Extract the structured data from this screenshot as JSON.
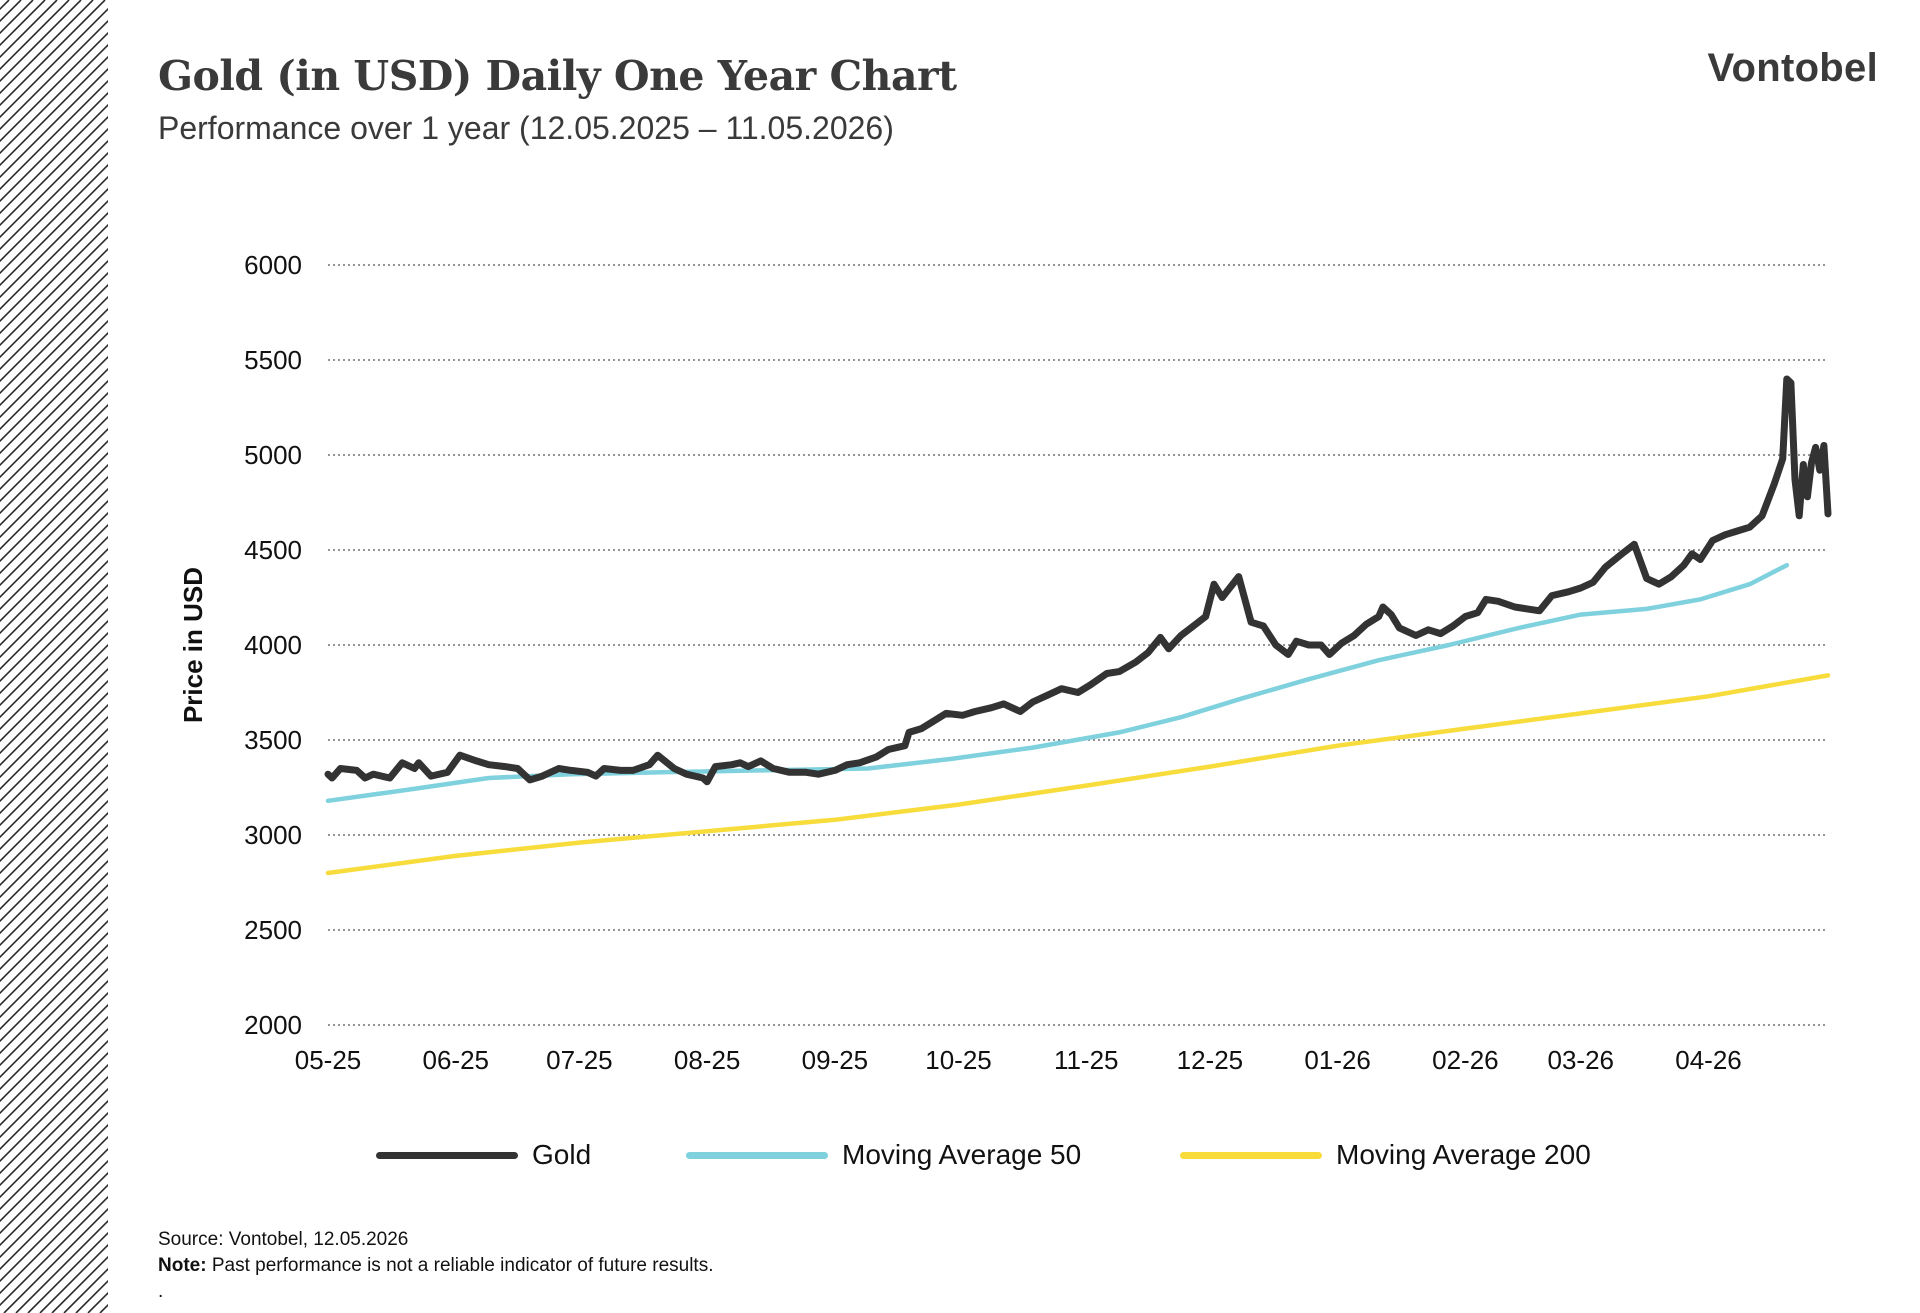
{
  "header": {
    "title": "Gold (in USD) Daily One Year Chart",
    "subtitle": "Performance over 1 year (12.05.2025 – 11.05.2026)",
    "logo": "Vontobel"
  },
  "footer": {
    "source": "Source: Vontobel, 12.05.2026",
    "note_label": "Note:",
    "note_text": " Past performance is not a reliable indicator of future results.",
    "trailing": "."
  },
  "colors": {
    "gold": "#333333",
    "ma50": "#7fd1de",
    "ma200": "#f7dc3c",
    "grid": "#555555",
    "hatch": "#2a2a2a"
  },
  "chart_data": {
    "type": "line",
    "ylabel": "Price in USD",
    "xlabel": "",
    "ylim": [
      2000,
      6000
    ],
    "yticks": [
      2000,
      2500,
      3000,
      3500,
      4000,
      4500,
      5000,
      5500,
      6000
    ],
    "xlim": [
      "2025-05-12",
      "2026-05-11"
    ],
    "xticks": [
      {
        "label": "05-25",
        "date": "2025-05-12"
      },
      {
        "label": "06-25",
        "date": "2025-06-12"
      },
      {
        "label": "07-25",
        "date": "2025-07-12"
      },
      {
        "label": "08-25",
        "date": "2025-08-12"
      },
      {
        "label": "09-25",
        "date": "2025-09-12"
      },
      {
        "label": "10-25",
        "date": "2025-10-12"
      },
      {
        "label": "11-25",
        "date": "2025-11-12"
      },
      {
        "label": "12-25",
        "date": "2025-12-12"
      },
      {
        "label": "01-26",
        "date": "2026-01-12"
      },
      {
        "label": "02-26",
        "date": "2026-02-12"
      },
      {
        "label": "03-26",
        "date": "2026-03-12"
      },
      {
        "label": "04-26",
        "date": "2026-04-12"
      }
    ],
    "grid": "horizontal dotted",
    "legend_position": "bottom",
    "series": [
      {
        "name": "Gold",
        "color": "#333333",
        "points": [
          [
            "2025-05-12",
            3320
          ],
          [
            "2025-05-13",
            3300
          ],
          [
            "2025-05-15",
            3350
          ],
          [
            "2025-05-19",
            3340
          ],
          [
            "2025-05-21",
            3300
          ],
          [
            "2025-05-23",
            3320
          ],
          [
            "2025-05-27",
            3300
          ],
          [
            "2025-05-30",
            3380
          ],
          [
            "2025-06-02",
            3350
          ],
          [
            "2025-06-03",
            3380
          ],
          [
            "2025-06-06",
            3310
          ],
          [
            "2025-06-10",
            3330
          ],
          [
            "2025-06-13",
            3420
          ],
          [
            "2025-06-17",
            3390
          ],
          [
            "2025-06-20",
            3370
          ],
          [
            "2025-06-24",
            3360
          ],
          [
            "2025-06-27",
            3350
          ],
          [
            "2025-06-30",
            3290
          ],
          [
            "2025-07-03",
            3310
          ],
          [
            "2025-07-07",
            3350
          ],
          [
            "2025-07-10",
            3340
          ],
          [
            "2025-07-14",
            3330
          ],
          [
            "2025-07-16",
            3310
          ],
          [
            "2025-07-18",
            3350
          ],
          [
            "2025-07-22",
            3340
          ],
          [
            "2025-07-25",
            3340
          ],
          [
            "2025-07-29",
            3370
          ],
          [
            "2025-07-31",
            3420
          ],
          [
            "2025-08-04",
            3350
          ],
          [
            "2025-08-07",
            3320
          ],
          [
            "2025-08-11",
            3300
          ],
          [
            "2025-08-12",
            3280
          ],
          [
            "2025-08-14",
            3360
          ],
          [
            "2025-08-18",
            3370
          ],
          [
            "2025-08-20",
            3380
          ],
          [
            "2025-08-22",
            3360
          ],
          [
            "2025-08-25",
            3390
          ],
          [
            "2025-08-28",
            3350
          ],
          [
            "2025-09-01",
            3330
          ],
          [
            "2025-09-05",
            3330
          ],
          [
            "2025-09-08",
            3320
          ],
          [
            "2025-09-12",
            3340
          ],
          [
            "2025-09-15",
            3370
          ],
          [
            "2025-09-18",
            3380
          ],
          [
            "2025-09-22",
            3410
          ],
          [
            "2025-09-25",
            3450
          ],
          [
            "2025-09-29",
            3470
          ],
          [
            "2025-09-30",
            3540
          ],
          [
            "2025-10-03",
            3560
          ],
          [
            "2025-10-06",
            3600
          ],
          [
            "2025-10-09",
            3640
          ],
          [
            "2025-10-13",
            3630
          ],
          [
            "2025-10-16",
            3650
          ],
          [
            "2025-10-20",
            3670
          ],
          [
            "2025-10-23",
            3690
          ],
          [
            "2025-10-27",
            3650
          ],
          [
            "2025-10-30",
            3700
          ],
          [
            "2025-11-03",
            3740
          ],
          [
            "2025-11-06",
            3770
          ],
          [
            "2025-11-10",
            3750
          ],
          [
            "2025-11-13",
            3790
          ],
          [
            "2025-11-17",
            3850
          ],
          [
            "2025-11-20",
            3860
          ],
          [
            "2025-11-24",
            3910
          ],
          [
            "2025-11-27",
            3960
          ],
          [
            "2025-11-30",
            4040
          ],
          [
            "2025-12-02",
            3980
          ],
          [
            "2025-12-05",
            4050
          ],
          [
            "2025-12-08",
            4100
          ],
          [
            "2025-12-11",
            4150
          ],
          [
            "2025-12-13",
            4320
          ],
          [
            "2025-12-15",
            4250
          ],
          [
            "2025-12-19",
            4360
          ],
          [
            "2025-12-22",
            4120
          ],
          [
            "2025-12-25",
            4100
          ],
          [
            "2025-12-28",
            4000
          ],
          [
            "2025-12-31",
            3950
          ],
          [
            "2026-01-02",
            4020
          ],
          [
            "2026-01-05",
            4000
          ],
          [
            "2026-01-08",
            4000
          ],
          [
            "2026-01-10",
            3950
          ],
          [
            "2026-01-13",
            4010
          ],
          [
            "2026-01-16",
            4050
          ],
          [
            "2026-01-19",
            4110
          ],
          [
            "2026-01-22",
            4150
          ],
          [
            "2026-01-23",
            4200
          ],
          [
            "2026-01-25",
            4160
          ],
          [
            "2026-01-27",
            4090
          ],
          [
            "2026-01-31",
            4050
          ],
          [
            "2026-02-03",
            4080
          ],
          [
            "2026-02-06",
            4060
          ],
          [
            "2026-02-09",
            4100
          ],
          [
            "2026-02-12",
            4150
          ],
          [
            "2026-02-15",
            4170
          ],
          [
            "2026-02-17",
            4240
          ],
          [
            "2026-02-20",
            4230
          ],
          [
            "2026-02-24",
            4200
          ],
          [
            "2026-02-27",
            4190
          ],
          [
            "2026-03-02",
            4180
          ],
          [
            "2026-03-05",
            4260
          ],
          [
            "2026-03-09",
            4280
          ],
          [
            "2026-03-12",
            4300
          ],
          [
            "2026-03-15",
            4330
          ],
          [
            "2026-03-18",
            4410
          ],
          [
            "2026-03-22",
            4480
          ],
          [
            "2026-03-25",
            4530
          ],
          [
            "2026-03-28",
            4350
          ],
          [
            "2026-03-31",
            4320
          ],
          [
            "2026-04-03",
            4360
          ],
          [
            "2026-04-06",
            4420
          ],
          [
            "2026-04-08",
            4480
          ],
          [
            "2026-04-10",
            4450
          ],
          [
            "2026-04-13",
            4550
          ],
          [
            "2026-04-16",
            4580
          ],
          [
            "2026-04-19",
            4600
          ],
          [
            "2026-04-22",
            4620
          ],
          [
            "2026-04-25",
            4680
          ],
          [
            "2026-04-28",
            4850
          ],
          [
            "2026-04-30",
            4980
          ],
          [
            "2026-05-01",
            5400
          ],
          [
            "2026-05-02",
            5380
          ],
          [
            "2026-05-03",
            4870
          ],
          [
            "2026-05-04",
            4680
          ],
          [
            "2026-05-05",
            4950
          ],
          [
            "2026-05-06",
            4780
          ],
          [
            "2026-05-07",
            4960
          ],
          [
            "2026-05-08",
            5040
          ],
          [
            "2026-05-09",
            4920
          ],
          [
            "2026-05-10",
            5050
          ],
          [
            "2026-05-11",
            4690
          ]
        ]
      },
      {
        "name": "Moving Average 50",
        "color": "#7fd1de",
        "points": [
          [
            "2025-05-12",
            3180
          ],
          [
            "2025-06-01",
            3240
          ],
          [
            "2025-06-20",
            3300
          ],
          [
            "2025-07-10",
            3320
          ],
          [
            "2025-08-01",
            3330
          ],
          [
            "2025-08-25",
            3340
          ],
          [
            "2025-09-20",
            3350
          ],
          [
            "2025-10-10",
            3400
          ],
          [
            "2025-10-30",
            3460
          ],
          [
            "2025-11-20",
            3540
          ],
          [
            "2025-12-05",
            3620
          ],
          [
            "2025-12-20",
            3720
          ],
          [
            "2026-01-05",
            3820
          ],
          [
            "2026-01-22",
            3920
          ],
          [
            "2026-02-08",
            4000
          ],
          [
            "2026-02-25",
            4090
          ],
          [
            "2026-03-12",
            4160
          ],
          [
            "2026-03-28",
            4190
          ],
          [
            "2026-04-10",
            4240
          ],
          [
            "2026-04-22",
            4320
          ],
          [
            "2026-05-01",
            4420
          ]
        ]
      },
      {
        "name": "Moving Average 200",
        "color": "#f7dc3c",
        "points": [
          [
            "2025-05-12",
            2800
          ],
          [
            "2025-06-12",
            2890
          ],
          [
            "2025-07-12",
            2960
          ],
          [
            "2025-08-12",
            3020
          ],
          [
            "2025-09-12",
            3080
          ],
          [
            "2025-10-12",
            3160
          ],
          [
            "2025-11-12",
            3260
          ],
          [
            "2025-12-12",
            3360
          ],
          [
            "2026-01-12",
            3470
          ],
          [
            "2026-02-12",
            3560
          ],
          [
            "2026-03-12",
            3640
          ],
          [
            "2026-04-12",
            3730
          ],
          [
            "2026-05-11",
            3840
          ]
        ]
      }
    ]
  }
}
